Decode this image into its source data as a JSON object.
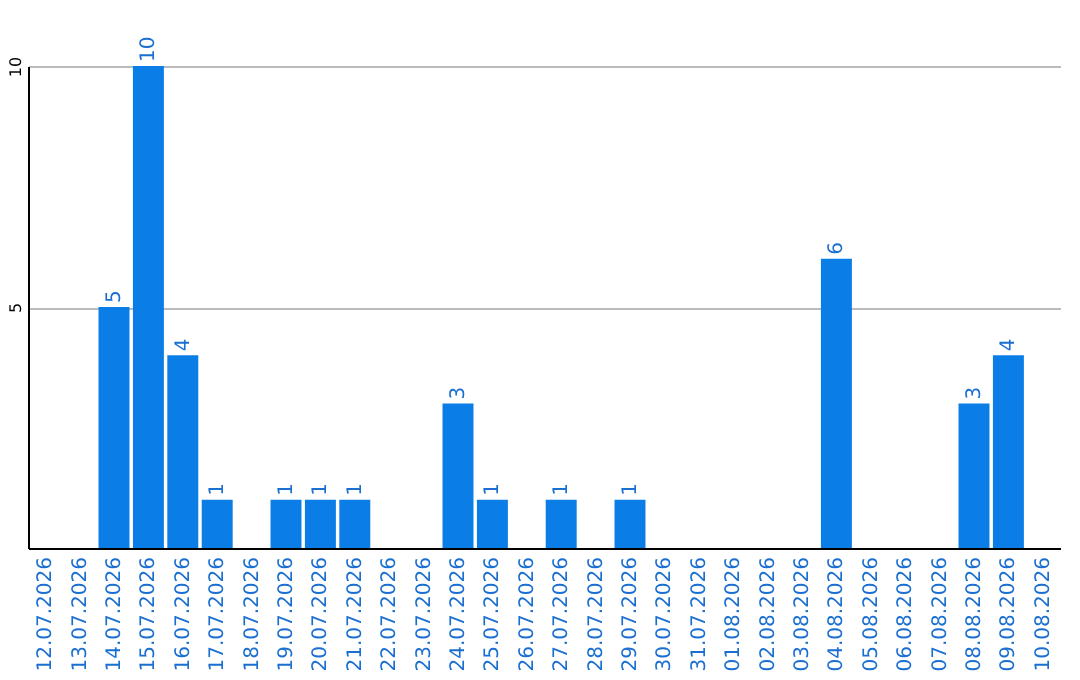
{
  "chart_data": {
    "type": "bar",
    "categories": [
      "12.07.2026",
      "13.07.2026",
      "14.07.2026",
      "15.07.2026",
      "16.07.2026",
      "17.07.2026",
      "18.07.2026",
      "19.07.2026",
      "20.07.2026",
      "21.07.2026",
      "22.07.2026",
      "23.07.2026",
      "24.07.2026",
      "25.07.2026",
      "26.07.2026",
      "27.07.2026",
      "28.07.2026",
      "29.07.2026",
      "30.07.2026",
      "31.07.2026",
      "01.08.2026",
      "02.08.2026",
      "03.08.2026",
      "04.08.2026",
      "05.08.2026",
      "06.08.2026",
      "07.08.2026",
      "08.08.2026",
      "09.08.2026",
      "10.08.2026"
    ],
    "values": [
      0,
      0,
      5,
      10,
      4,
      1,
      0,
      1,
      1,
      1,
      0,
      0,
      3,
      1,
      0,
      1,
      0,
      1,
      0,
      0,
      0,
      0,
      0,
      6,
      0,
      0,
      0,
      3,
      4,
      0
    ],
    "value_labels": [
      null,
      null,
      "5",
      "10",
      "4",
      "1",
      null,
      "1",
      "1",
      "1",
      null,
      null,
      "3",
      "1",
      null,
      "1",
      null,
      "1",
      null,
      null,
      null,
      null,
      null,
      "6",
      null,
      null,
      null,
      "3",
      "4",
      null
    ],
    "color": "#0a7de6",
    "ylim": [
      0,
      10
    ],
    "yticks": [
      5,
      10
    ],
    "grid": "y"
  }
}
